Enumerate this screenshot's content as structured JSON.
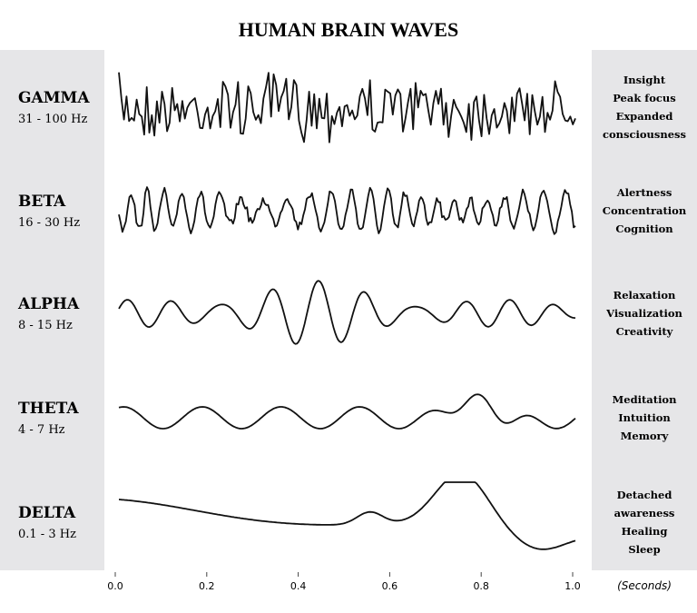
{
  "title": "HUMAN BRAIN WAVES",
  "waves": [
    {
      "name": "GAMMA",
      "range": "31 - 100 Hz",
      "effects": [
        "Insight",
        "Peak focus",
        "Expanded",
        "consciousness"
      ]
    },
    {
      "name": "BETA",
      "range": "16 - 30 Hz",
      "effects": [
        "Alertness",
        "Concentration",
        "Cognition"
      ]
    },
    {
      "name": "ALPHA",
      "range": "8 - 15 Hz",
      "effects": [
        "Relaxation",
        "Visualization",
        "Creativity"
      ]
    },
    {
      "name": "THETA",
      "range": "4 - 7 Hz",
      "effects": [
        "Meditation",
        "Intuition",
        "Memory"
      ]
    },
    {
      "name": "DELTA",
      "range": "0.1 - 3 Hz",
      "effects": [
        "Detached",
        "awareness",
        "Healing",
        "Sleep"
      ]
    }
  ],
  "x_axis": {
    "ticks": [
      "0.0",
      "0.2",
      "0.4",
      "0.6",
      "0.8",
      "1.0"
    ],
    "unit": "(Seconds)"
  }
}
